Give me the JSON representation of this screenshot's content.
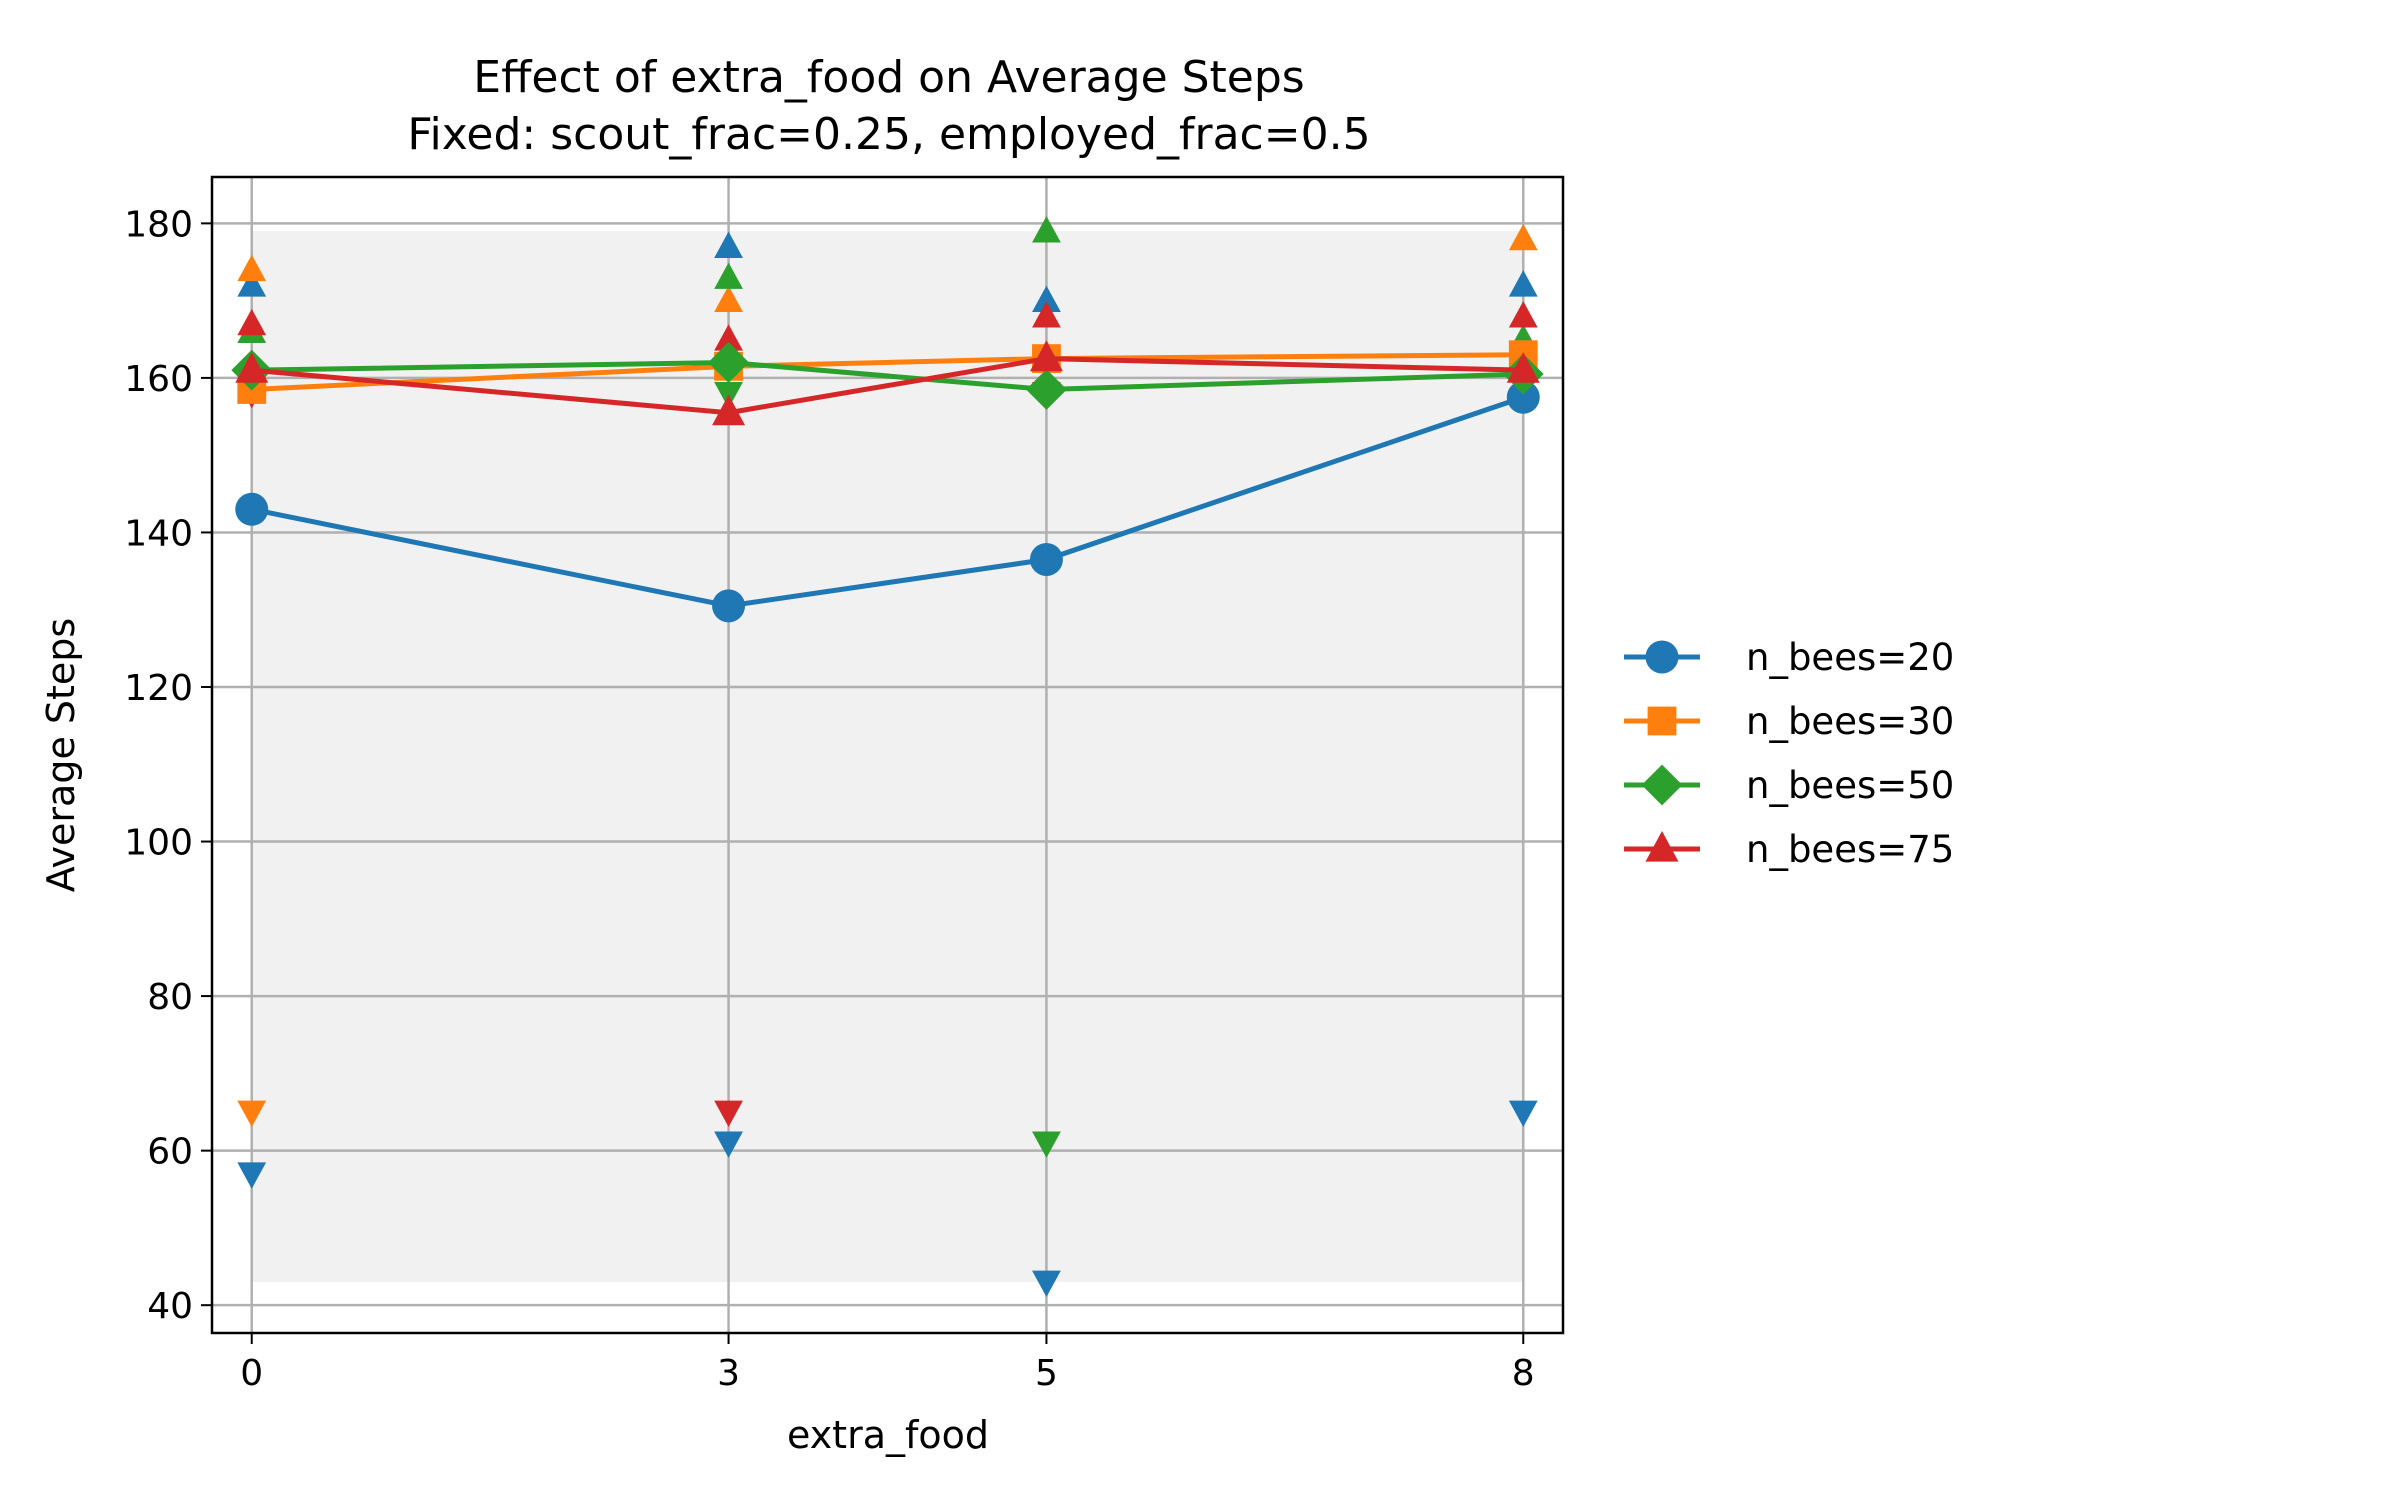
{
  "chart_data": {
    "type": "line",
    "title": "Effect of extra_food on Average Steps",
    "subtitle": "Fixed: scout_frac=0.25, employed_frac=0.5",
    "xlabel": "extra_food",
    "ylabel": "Average Steps",
    "x": [
      0,
      3,
      5,
      8
    ],
    "xticks": [
      "0",
      "3",
      "5",
      "8"
    ],
    "xlim": [
      -0.25,
      8.25
    ],
    "ylim": [
      36.4,
      186.0
    ],
    "yticks": [
      40,
      60,
      80,
      100,
      120,
      140,
      160,
      180
    ],
    "grid": true,
    "legend_position": "outside right",
    "shaded_band": {
      "x": [
        0,
        8
      ],
      "y": [
        43,
        179
      ],
      "color": "#f1f1f1"
    },
    "series": [
      {
        "name": "n_bees=20",
        "color": "#1f77b4",
        "marker": "circle",
        "values": [
          143,
          130.5,
          136.5,
          157.5
        ],
        "max": [
          172,
          177,
          170,
          172
        ],
        "min": [
          57,
          61,
          43,
          65
        ]
      },
      {
        "name": "n_bees=30",
        "color": "#ff7f0e",
        "marker": "square",
        "values": [
          158.5,
          161.5,
          162.5,
          163
        ],
        "max": [
          174,
          170,
          163,
          178
        ],
        "min": [
          65,
          null,
          null,
          null
        ]
      },
      {
        "name": "n_bees=50",
        "color": "#2ca02c",
        "marker": "diamond",
        "values": [
          161,
          162,
          158.5,
          160.5
        ],
        "max": [
          166,
          173,
          179,
          165
        ],
        "min": [
          null,
          158,
          61,
          null
        ]
      },
      {
        "name": "n_bees=75",
        "color": "#d62728",
        "marker": "triangle",
        "values": [
          161,
          155.5,
          162.5,
          161
        ],
        "max": [
          167,
          165,
          168,
          168
        ],
        "min": [
          158,
          65,
          158,
          159
        ]
      }
    ]
  }
}
